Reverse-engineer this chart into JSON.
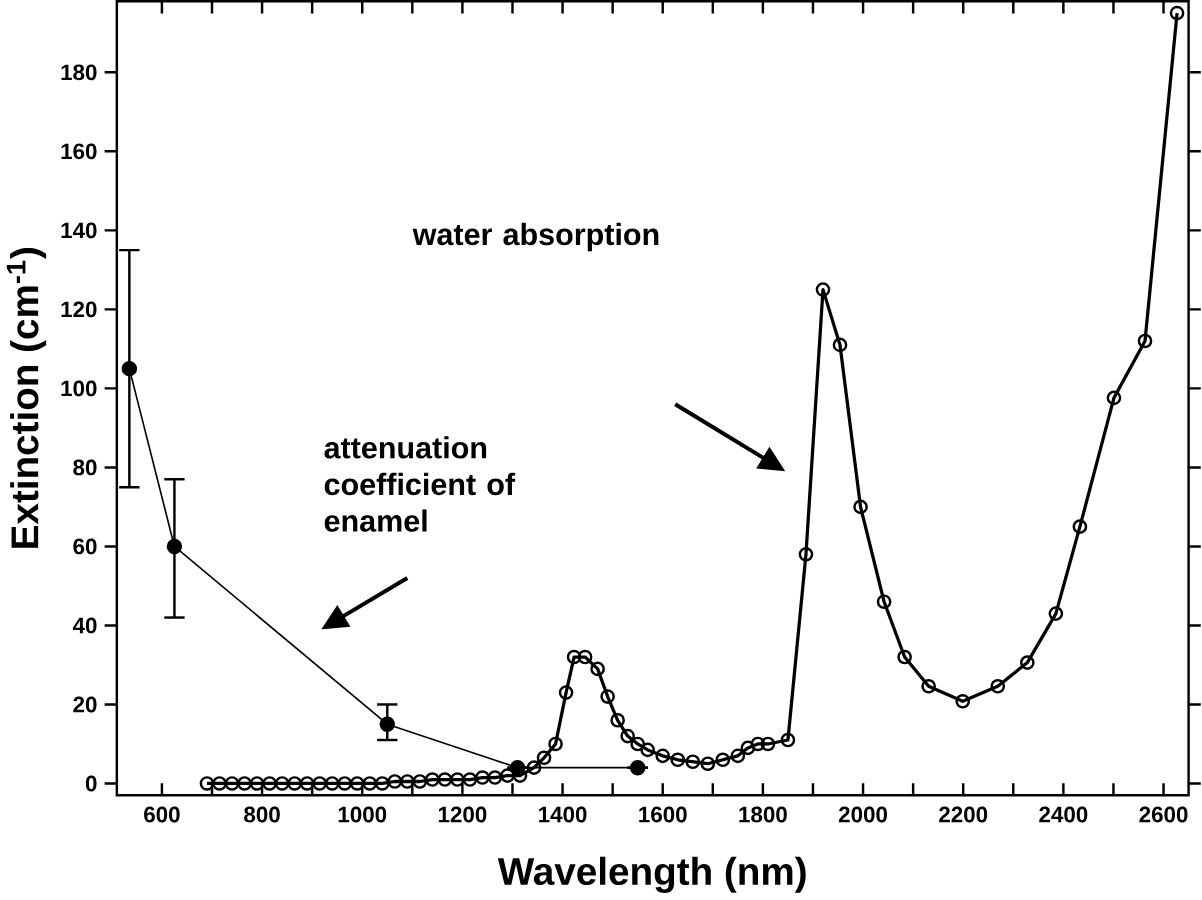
{
  "chart_data": {
    "type": "line",
    "xlabel": "Wavelength (nm)",
    "ylabel": "Extinction (cm$^{-1}$)",
    "xlim": [
      510,
      2650
    ],
    "ylim": [
      -3,
      198
    ],
    "xticks": [
      600,
      800,
      1000,
      1200,
      1400,
      1600,
      1800,
      2000,
      2200,
      2400,
      2600
    ],
    "yticks": [
      0,
      20,
      40,
      60,
      80,
      100,
      120,
      140,
      160,
      180
    ],
    "marker": "circle",
    "series": [
      {
        "color": "#000000",
        "x": [
          535,
          625,
          1050,
          1310,
          1550
        ],
        "values": [
          105,
          60,
          15,
          4,
          4
        ],
        "errors": [
          [
            75,
            135
          ],
          [
            42,
            77
          ],
          [
            11,
            20
          ],
          null,
          null
        ]
      },
      {
        "color": "#000000",
        "x": [
          690,
          715,
          740,
          765,
          790,
          815,
          840,
          865,
          890,
          915,
          940,
          965,
          990,
          1015,
          1040,
          1065,
          1090,
          1115,
          1140,
          1165,
          1190,
          1215,
          1240,
          1265,
          1290,
          1315,
          1343,
          1363,
          1386,
          1407,
          1423,
          1445,
          1470,
          1490,
          1510,
          1530,
          1550,
          1570,
          1600,
          1630,
          1660,
          1690,
          1720,
          1750,
          1770,
          1790,
          1810,
          1850,
          1886,
          1920,
          1954,
          1995,
          2042,
          2083,
          2131,
          2199,
          2269,
          2328,
          2385,
          2433,
          2501,
          2563,
          2627
        ],
        "values": [
          0,
          0,
          0,
          0,
          0,
          0,
          0,
          0,
          0,
          0,
          0,
          0,
          0,
          0,
          0,
          0.5,
          0.5,
          0.5,
          1,
          1,
          1,
          1,
          1.5,
          1.5,
          2,
          2,
          4,
          6.5,
          10,
          23,
          32,
          32,
          29,
          22,
          16,
          12,
          10,
          8.5,
          7,
          6,
          5.5,
          5,
          6,
          7,
          9,
          10,
          10,
          11,
          58,
          125,
          111,
          70,
          46,
          32,
          24.6,
          20.8,
          24.6,
          30.6,
          43,
          65,
          97.6,
          112,
          195
        ]
      }
    ],
    "annotations": [
      "attenuation coefficient of enamel",
      "water absorption"
    ]
  }
}
